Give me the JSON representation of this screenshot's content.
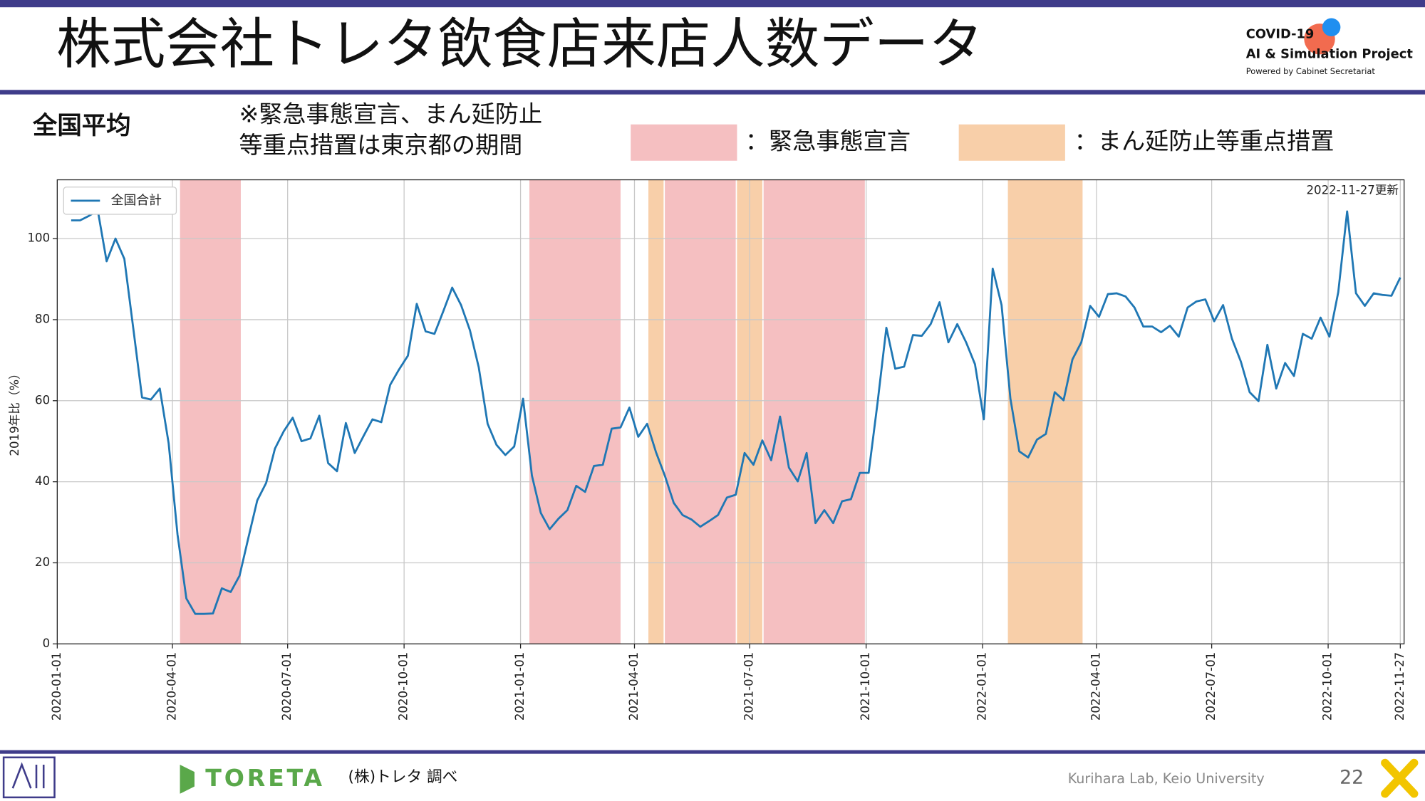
{
  "slide": {
    "title": "株式会社トレタ飲食店来店人数データ",
    "logo_line1": "COVID-19",
    "logo_line2": "AI & Simulation Project",
    "logo_line3": "Powered by Cabinet Secretariat",
    "section": "全国平均",
    "note": [
      "※緊急事態宣言、まん延防止",
      "等重点措置は東京都の期間"
    ],
    "footer_brand": "TORETA",
    "footer_source": "(株)トレタ 調べ",
    "footer_lab": "Kurihara Lab, Keio University",
    "page_number": "22"
  },
  "chart_data": {
    "type": "line",
    "ylabel": "2019年比（%）",
    "annotation": "2022-11-27更新",
    "legend": "upper left",
    "grid": true,
    "xlim": [
      "2020-01-01",
      "2022-11-30"
    ],
    "xticks": [
      "2020-01-01",
      "2020-04-01",
      "2020-07-01",
      "2020-10-01",
      "2021-01-01",
      "2021-04-01",
      "2021-07-01",
      "2021-10-01",
      "2022-01-01",
      "2022-04-01",
      "2022-07-01",
      "2022-10-01",
      "2022-11-27"
    ],
    "ylim": [
      0,
      114.5
    ],
    "yticks": [
      0,
      20,
      40,
      60,
      80,
      100
    ],
    "shaded_periods": [
      {
        "label": "：緊急事態宣言",
        "color": "#f5bfc1",
        "ranges": [
          [
            "2020-04-07",
            "2020-05-25"
          ],
          [
            "2021-01-08",
            "2021-03-21"
          ],
          [
            "2021-04-25",
            "2021-06-20"
          ],
          [
            "2021-07-12",
            "2021-09-30"
          ]
        ]
      },
      {
        "label": "：まん延防止等重点措置",
        "color": "#f8cfa9",
        "ranges": [
          [
            "2021-04-12",
            "2021-04-24"
          ],
          [
            "2021-06-21",
            "2021-07-11"
          ],
          [
            "2022-01-21",
            "2022-03-21"
          ]
        ]
      }
    ],
    "x": [
      "2020-01-12",
      "2020-01-19",
      "2020-01-26",
      "2020-02-02",
      "2020-02-09",
      "2020-02-16",
      "2020-02-23",
      "2020-03-01",
      "2020-03-08",
      "2020-03-15",
      "2020-03-22",
      "2020-03-29",
      "2020-04-05",
      "2020-04-12",
      "2020-04-19",
      "2020-04-26",
      "2020-05-03",
      "2020-05-10",
      "2020-05-17",
      "2020-05-24",
      "2020-05-31",
      "2020-06-07",
      "2020-06-14",
      "2020-06-21",
      "2020-06-28",
      "2020-07-05",
      "2020-07-12",
      "2020-07-19",
      "2020-07-26",
      "2020-08-02",
      "2020-08-09",
      "2020-08-16",
      "2020-08-23",
      "2020-08-30",
      "2020-09-06",
      "2020-09-13",
      "2020-09-20",
      "2020-09-27",
      "2020-10-04",
      "2020-10-11",
      "2020-10-18",
      "2020-10-25",
      "2020-11-01",
      "2020-11-08",
      "2020-11-15",
      "2020-11-22",
      "2020-11-29",
      "2020-12-06",
      "2020-12-13",
      "2020-12-20",
      "2020-12-27",
      "2021-01-03",
      "2021-01-10",
      "2021-01-17",
      "2021-01-24",
      "2021-01-31",
      "2021-02-07",
      "2021-02-14",
      "2021-02-21",
      "2021-02-28",
      "2021-03-07",
      "2021-03-14",
      "2021-03-21",
      "2021-03-28",
      "2021-04-04",
      "2021-04-11",
      "2021-04-18",
      "2021-04-25",
      "2021-05-02",
      "2021-05-09",
      "2021-05-16",
      "2021-05-23",
      "2021-05-30",
      "2021-06-06",
      "2021-06-13",
      "2021-06-20",
      "2021-06-27",
      "2021-07-04",
      "2021-07-11",
      "2021-07-18",
      "2021-07-25",
      "2021-08-01",
      "2021-08-08",
      "2021-08-15",
      "2021-08-22",
      "2021-08-29",
      "2021-09-05",
      "2021-09-12",
      "2021-09-19",
      "2021-09-26",
      "2021-10-03",
      "2021-10-10",
      "2021-10-17",
      "2021-10-24",
      "2021-10-31",
      "2021-11-07",
      "2021-11-14",
      "2021-11-21",
      "2021-11-28",
      "2021-12-05",
      "2021-12-12",
      "2021-12-19",
      "2021-12-26",
      "2022-01-02",
      "2022-01-09",
      "2022-01-16",
      "2022-01-23",
      "2022-01-30",
      "2022-02-06",
      "2022-02-13",
      "2022-02-20",
      "2022-02-27",
      "2022-03-06",
      "2022-03-13",
      "2022-03-20",
      "2022-03-27",
      "2022-04-03",
      "2022-04-10",
      "2022-04-17",
      "2022-04-24",
      "2022-05-01",
      "2022-05-08",
      "2022-05-15",
      "2022-05-22",
      "2022-05-29",
      "2022-06-05",
      "2022-06-12",
      "2022-06-19",
      "2022-06-26",
      "2022-07-03",
      "2022-07-10",
      "2022-07-17",
      "2022-07-24",
      "2022-07-31",
      "2022-08-07",
      "2022-08-14",
      "2022-08-21",
      "2022-08-28",
      "2022-09-04",
      "2022-09-11",
      "2022-09-18",
      "2022-09-25",
      "2022-10-02",
      "2022-10-09",
      "2022-10-16",
      "2022-10-23",
      "2022-10-30",
      "2022-11-06",
      "2022-11-13",
      "2022-11-20",
      "2022-11-27"
    ],
    "series": [
      {
        "name": "全国合計",
        "color": "#1f77b4",
        "values": [
          104.5,
          104.5,
          105.6,
          107,
          94.4,
          100,
          95,
          78,
          60.8,
          60.3,
          63,
          49.5,
          27,
          11.2,
          7.4,
          7.4,
          7.5,
          13.7,
          12.8,
          16.8,
          26.2,
          35.4,
          39.7,
          48.2,
          52.5,
          55.8,
          50,
          50.7,
          56.3,
          44.6,
          42.6,
          54.5,
          47.1,
          51.3,
          55.4,
          54.7,
          63.9,
          67.7,
          71.1,
          83.9,
          77.1,
          76.5,
          82.1,
          87.9,
          83.6,
          77.4,
          68.2,
          54.3,
          49.1,
          46.6,
          48.7,
          60.5,
          41.5,
          32.3,
          28.3,
          30.9,
          33,
          39,
          37.5,
          43.9,
          44.2,
          53.1,
          53.4,
          58.3,
          51.1,
          54.3,
          47.3,
          41.5,
          34.8,
          31.8,
          30.7,
          28.9,
          30.3,
          31.8,
          36.1,
          36.8,
          47.1,
          44.2,
          50.2,
          45.3,
          56.1,
          43.5,
          40.1,
          47.1,
          29.8,
          33,
          29.8,
          35.2,
          35.7,
          42.2,
          42.2,
          59.4,
          78,
          67.9,
          68.4,
          76.2,
          76,
          78.9,
          84.3,
          74.4,
          78.9,
          74.4,
          69,
          55.4,
          92.6,
          83.6,
          60.5,
          47.5,
          46,
          50.4,
          51.8,
          62.1,
          60.1,
          70.2,
          74.4,
          83.4,
          80.7,
          86.3,
          86.5,
          85.7,
          83,
          78.3,
          78.3,
          76.9,
          78.5,
          75.8,
          83,
          84.5,
          85,
          79.6,
          83.6,
          75.3,
          69.7,
          62.1,
          59.9,
          73.8,
          63,
          69.3,
          66.1,
          76.5,
          75.3,
          80.5,
          75.8,
          86.8,
          106.7,
          86.5,
          83.4,
          86.5,
          86.1,
          85.9,
          90.4
        ]
      }
    ]
  }
}
